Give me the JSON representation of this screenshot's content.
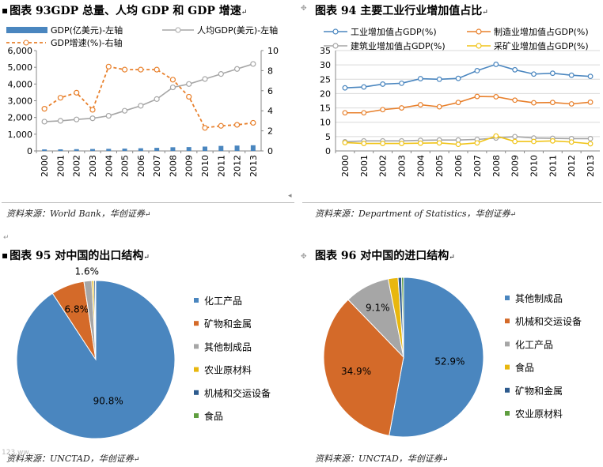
{
  "chart_data": [
    {
      "type": "bar+line",
      "title": "图表 93GDP 总量、人均 GDP 和 GDP 增速",
      "categories": [
        "2000",
        "2001",
        "2002",
        "2003",
        "2004",
        "2005",
        "2006",
        "2007",
        "2008",
        "2009",
        "2010",
        "2011",
        "2012",
        "2013"
      ],
      "legend": {
        "bar": "GDP(亿美元)-左轴",
        "per_capita": "人均GDP(美元)-左轴",
        "growth": "GDP增速(%)-右轴"
      },
      "series": [
        {
          "name": "GDP(亿美元)-左轴",
          "axis": "left",
          "values": [
            90,
            95,
            105,
            115,
            125,
            140,
            160,
            185,
            220,
            230,
            260,
            300,
            320,
            340
          ]
        },
        {
          "name": "人均GDP(美元)-左轴",
          "axis": "left",
          "values": [
            1750,
            1800,
            1880,
            1950,
            2100,
            2400,
            2700,
            3100,
            3800,
            4000,
            4300,
            4600,
            4900,
            5200
          ]
        },
        {
          "name": "GDP增速(%)-右轴",
          "axis": "right",
          "values": [
            4.2,
            5.3,
            5.8,
            4.1,
            8.4,
            8.1,
            8.1,
            8.1,
            7.1,
            5.4,
            2.3,
            2.5,
            2.6,
            2.8
          ]
        }
      ],
      "ylim_left": [
        0,
        6000
      ],
      "yticks_left": [
        "0",
        "1,000",
        "2,000",
        "3,000",
        "4,000",
        "5,000",
        "6,000"
      ],
      "ylim_right": [
        0,
        10
      ],
      "yticks_right": [
        "0",
        "2",
        "4",
        "6",
        "8",
        "10"
      ],
      "colors": {
        "bar": "#4a86bf",
        "per_capita": "#a6a6a6",
        "growth": "#e8802c"
      },
      "source": "资料来源：World Bank，华创证券"
    },
    {
      "type": "line",
      "title": "图表 94 主要工业行业增加值占比",
      "categories": [
        "2000",
        "2001",
        "2002",
        "2003",
        "2004",
        "2005",
        "2006",
        "2007",
        "2008",
        "2009",
        "2010",
        "2011",
        "2012",
        "2013"
      ],
      "series": [
        {
          "name": "工业增加值占GDP(%)",
          "color": "#4a86bf",
          "values": [
            22,
            22.3,
            23.3,
            23.6,
            25.2,
            25,
            25.3,
            28,
            30.2,
            28.3,
            26.8,
            27.1,
            26.4,
            26
          ]
        },
        {
          "name": "制造业增加值占GDP(%)",
          "color": "#e8802c",
          "values": [
            13.3,
            13.3,
            14.4,
            15,
            16.1,
            15.4,
            16.9,
            19,
            18.9,
            17.7,
            16.8,
            16.9,
            16.4,
            17
          ]
        },
        {
          "name": "建筑业增加值占GDP(%)",
          "color": "#a6a6a6",
          "values": [
            3.2,
            3.5,
            3.5,
            3.5,
            3.7,
            3.8,
            3.8,
            4,
            4.5,
            5,
            4.5,
            4.4,
            4.3,
            4.3
          ]
        },
        {
          "name": "采矿业增加值占GDP(%)",
          "color": "#f0c419",
          "values": [
            2.9,
            2.6,
            2.6,
            2.6,
            2.7,
            2.8,
            2.3,
            2.8,
            5.2,
            3.3,
            3.3,
            3.5,
            3.1,
            2.5
          ]
        }
      ],
      "ylim": [
        0,
        35
      ],
      "yticks": [
        "0",
        "5",
        "10",
        "15",
        "20",
        "25",
        "30",
        "35"
      ],
      "source": "资料来源：Department of Statistics，华创证券"
    },
    {
      "type": "pie",
      "title": "图表 95 对中国的出口结构",
      "slices": [
        {
          "label": "化工产品",
          "value": 90.8,
          "color": "#4a86bf",
          "text": "90.8%"
        },
        {
          "label": "矿物和金属",
          "value": 6.8,
          "color": "#d46a29",
          "text": "6.8%"
        },
        {
          "label": "其他制成品",
          "value": 1.6,
          "color": "#a6a6a6",
          "text": "1.6%"
        },
        {
          "label": "农业原材料",
          "value": 0.4,
          "color": "#e8b70f",
          "text": ""
        },
        {
          "label": "机械和交运设备",
          "value": 0.3,
          "color": "#2e5b8e",
          "text": ""
        },
        {
          "label": "食品",
          "value": 0.1,
          "color": "#5f9e3f",
          "text": ""
        }
      ],
      "source": "资料来源：UNCTAD，华创证券"
    },
    {
      "type": "pie",
      "title": "图表 96 对中国的进口结构",
      "slices": [
        {
          "label": "其他制成品",
          "value": 52.9,
          "color": "#4a86bf",
          "text": "52.9%"
        },
        {
          "label": "机械和交运设备",
          "value": 34.9,
          "color": "#d46a29",
          "text": "34.9%"
        },
        {
          "label": "化工产品",
          "value": 9.1,
          "color": "#a6a6a6",
          "text": "9.1%"
        },
        {
          "label": "食品",
          "value": 2.0,
          "color": "#e8b70f",
          "text": ""
        },
        {
          "label": "矿物和金属",
          "value": 0.7,
          "color": "#2e5b8e",
          "text": ""
        },
        {
          "label": "农业原材料",
          "value": 0.4,
          "color": "#5f9e3f",
          "text": ""
        }
      ],
      "source": "资料来源：UNCTAD，华创证券"
    }
  ],
  "marks": {
    "title_bullet": "▪",
    "para_mark": "↵",
    "corner_glyph": "◂",
    "anchor": "✥"
  },
  "watermark": "123.ww..."
}
